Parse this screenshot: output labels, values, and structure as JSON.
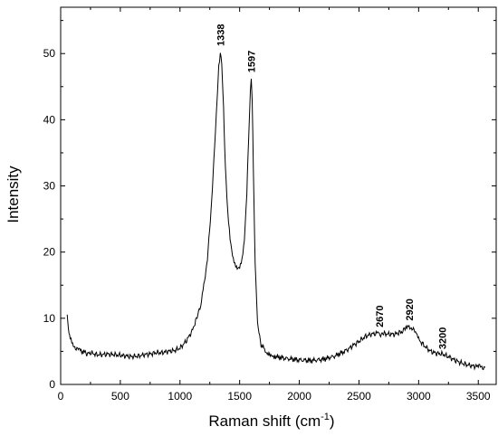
{
  "chart_data": {
    "type": "line",
    "xlabel": "Raman shift (cm",
    "xlabel_superscript": "-1",
    "xlabel_suffix": ")",
    "ylabel": "Intensity",
    "xlim": [
      0,
      3650
    ],
    "ylim": [
      0,
      57
    ],
    "x_ticks": [
      0,
      500,
      1000,
      1500,
      2000,
      2500,
      3000,
      3500
    ],
    "y_ticks": [
      0,
      10,
      20,
      30,
      40,
      50
    ],
    "grid": false,
    "series": [
      {
        "x": [
          55,
          60,
          70,
          80,
          100,
          130,
          160,
          200,
          225,
          250,
          300,
          350,
          400,
          450,
          500,
          550,
          600,
          650,
          700,
          750,
          800,
          850,
          900,
          950,
          1000,
          1050,
          1100,
          1150,
          1180,
          1200,
          1230,
          1260,
          1290,
          1310,
          1325,
          1338,
          1350,
          1365,
          1380,
          1400,
          1420,
          1440,
          1460,
          1480,
          1500,
          1520,
          1540,
          1560,
          1575,
          1590,
          1597,
          1605,
          1615,
          1630,
          1650,
          1680,
          1720,
          1800,
          1900,
          2000,
          2100,
          2200,
          2300,
          2400,
          2450,
          2500,
          2550,
          2600,
          2650,
          2670,
          2700,
          2750,
          2800,
          2850,
          2880,
          2900,
          2920,
          2950,
          2980,
          3000,
          3050,
          3100,
          3150,
          3200,
          3250,
          3300,
          3350,
          3400,
          3450,
          3500,
          3560
        ],
        "y": [
          10.2,
          9.3,
          8.0,
          7.0,
          6.0,
          5.5,
          5.1,
          4.9,
          4.6,
          4.8,
          4.5,
          4.5,
          4.6,
          4.5,
          4.4,
          4.3,
          4.2,
          4.3,
          4.5,
          4.6,
          4.8,
          4.8,
          5.0,
          5.1,
          5.5,
          6.5,
          8.0,
          10.5,
          12.5,
          15.0,
          19.0,
          26.0,
          36.0,
          43.0,
          48.0,
          50.3,
          48.5,
          42.0,
          33.0,
          26.0,
          22.0,
          19.5,
          18.2,
          17.6,
          17.8,
          19.0,
          22.0,
          29.0,
          37.0,
          44.0,
          46.3,
          43.0,
          33.0,
          18.0,
          9.0,
          6.0,
          5.0,
          4.2,
          3.9,
          3.7,
          3.6,
          3.8,
          4.3,
          5.2,
          5.9,
          6.5,
          7.2,
          7.6,
          7.7,
          7.6,
          7.7,
          7.6,
          7.6,
          7.9,
          8.3,
          8.6,
          8.8,
          8.4,
          7.6,
          6.8,
          5.8,
          5.0,
          4.7,
          4.6,
          4.2,
          3.7,
          3.3,
          3.0,
          2.8,
          2.7,
          2.6
        ]
      }
    ],
    "annotations": [
      {
        "text": "1338",
        "x": 1338,
        "y": 50.3
      },
      {
        "text": "1597",
        "x": 1597,
        "y": 46.3
      },
      {
        "text": "2670",
        "x": 2670,
        "y": 7.8
      },
      {
        "text": "2920",
        "x": 2920,
        "y": 8.8
      },
      {
        "text": "3200",
        "x": 3200,
        "y": 4.5
      }
    ]
  }
}
